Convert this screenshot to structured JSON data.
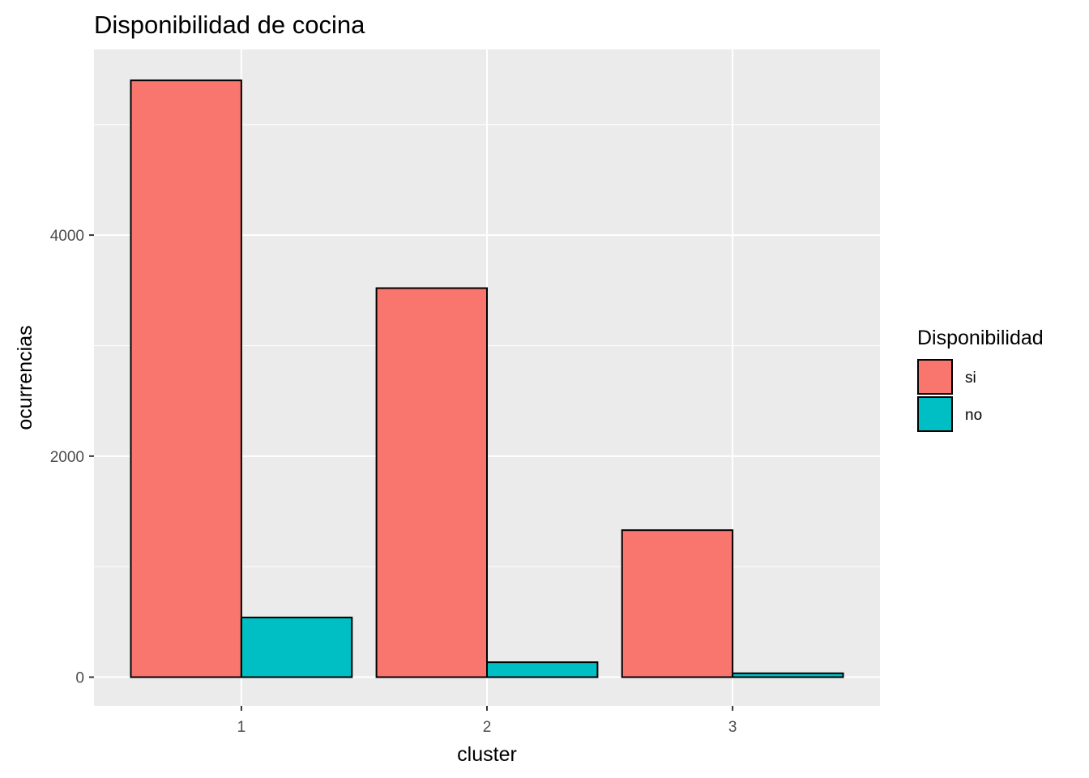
{
  "chart_data": {
    "type": "bar",
    "title": "Disponibilidad de cocina",
    "xlabel": "cluster",
    "ylabel": "ocurrencias",
    "categories": [
      "1",
      "2",
      "3"
    ],
    "series": [
      {
        "name": "si",
        "values": [
          5400,
          3520,
          1330
        ],
        "color": "#F8766D"
      },
      {
        "name": "no",
        "values": [
          540,
          135,
          35
        ],
        "color": "#00BFC4"
      }
    ],
    "y_ticks": [
      0,
      2000,
      4000
    ],
    "y_tick_labels": [
      "0",
      "2000",
      "4000"
    ],
    "ylim": [
      -260,
      5680
    ],
    "grid": true,
    "legend": {
      "title": "Disponibilidad",
      "position": "right"
    },
    "colors": {
      "panel": "#EBEBEB",
      "grid": "#FFFFFF",
      "bar_outline": "#000000"
    }
  }
}
